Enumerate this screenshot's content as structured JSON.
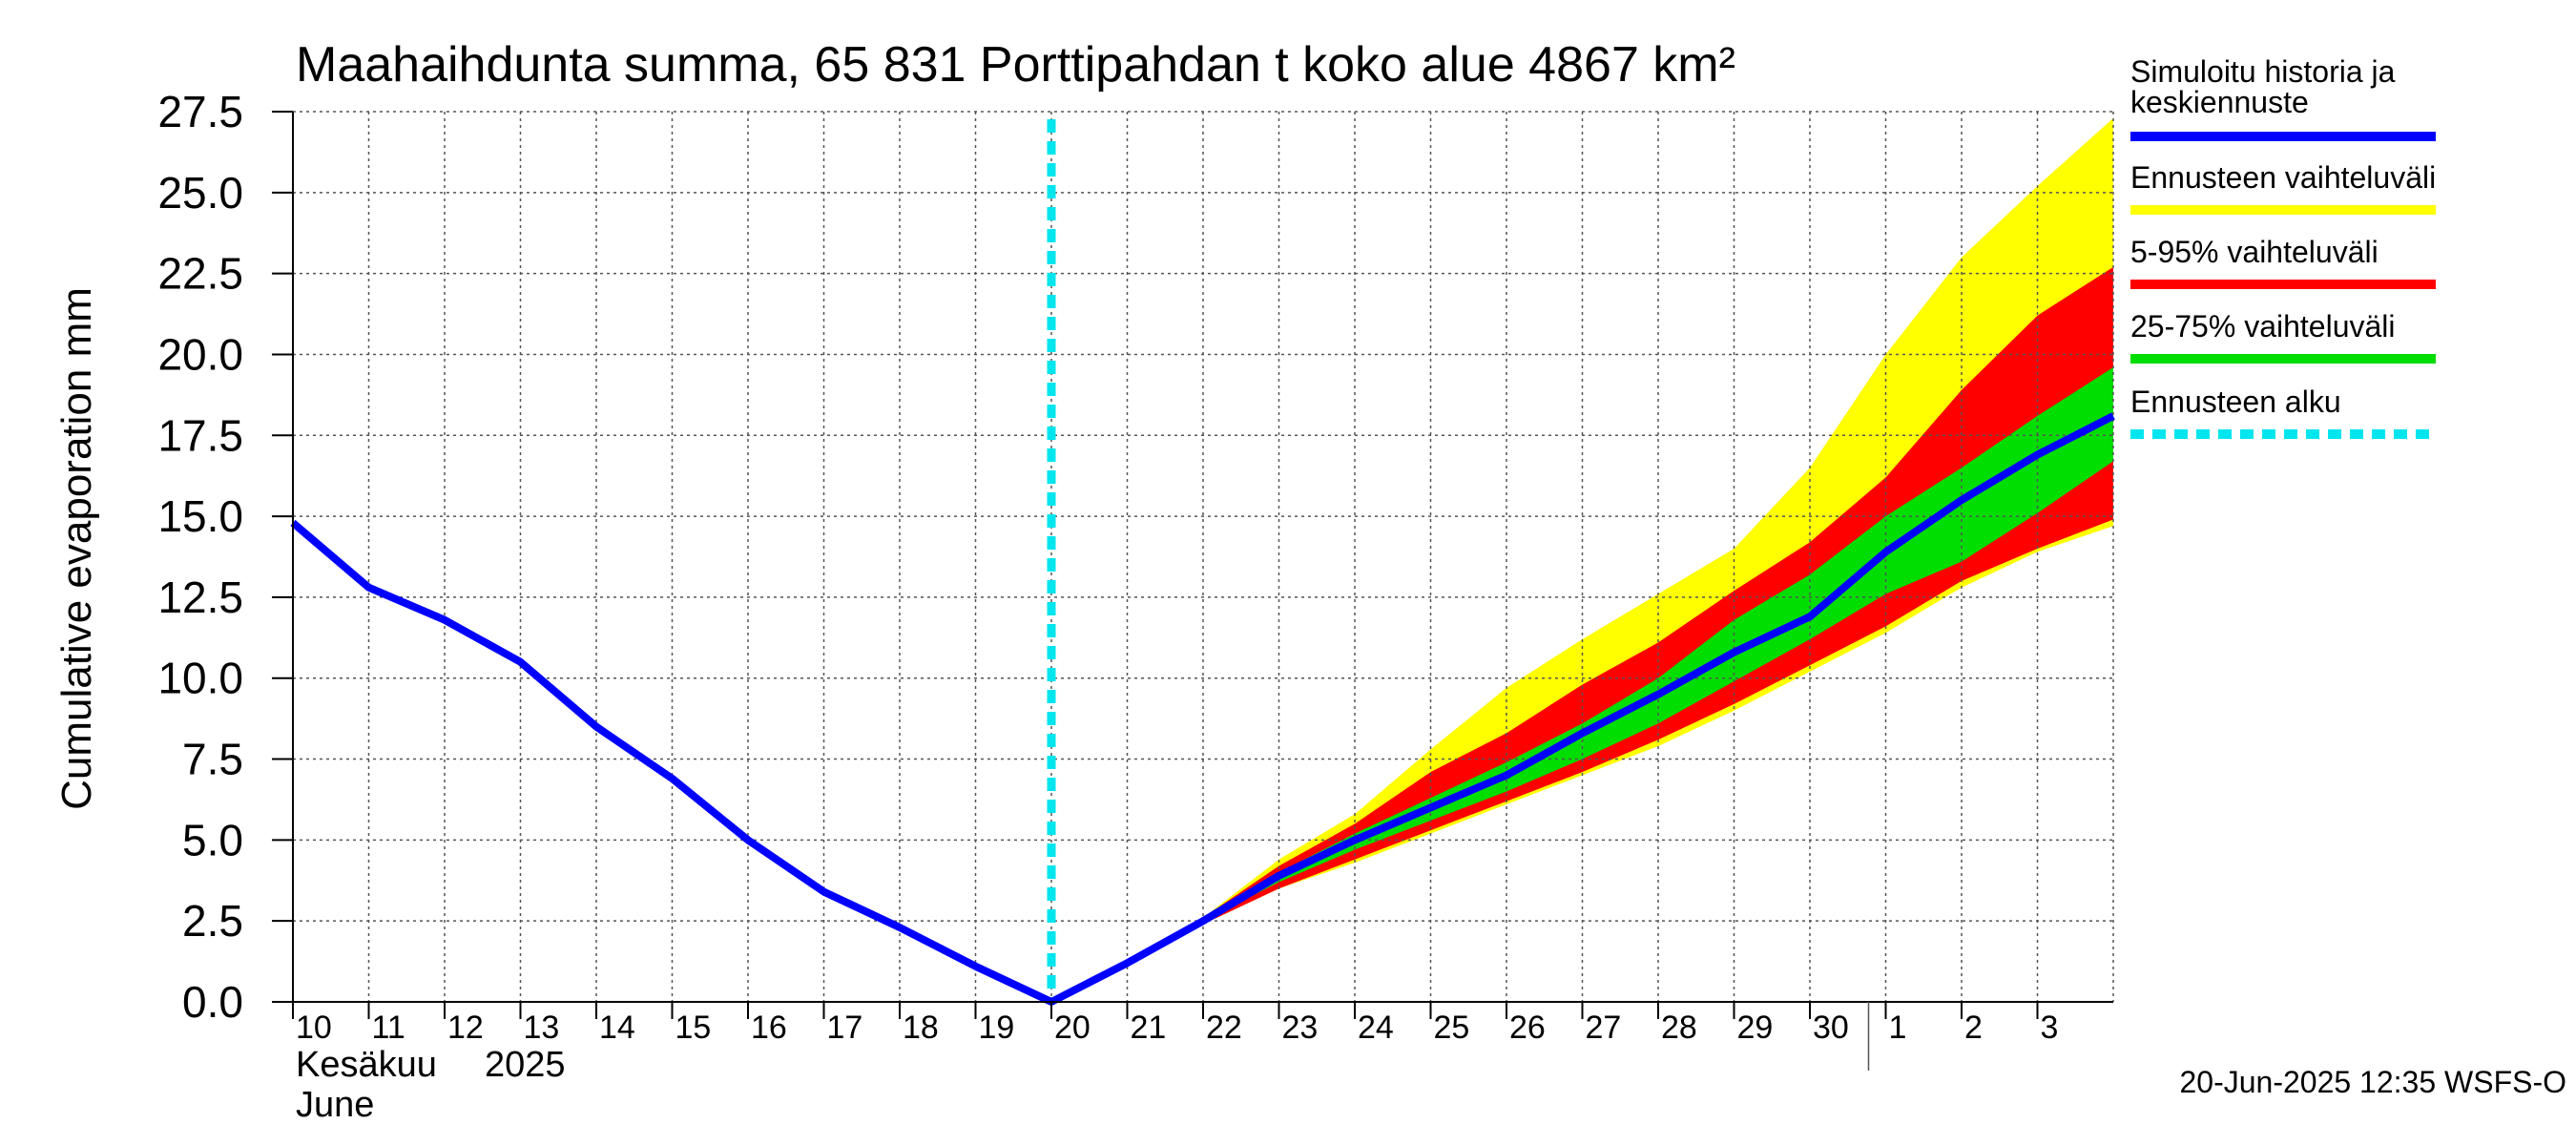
{
  "chart_data": {
    "type": "area",
    "title": "Maahaihdunta summa, 65 831 Porttipahdan t koko alue 4867 km²",
    "ylabel": "Cumulative evaporation   mm",
    "ylim": [
      0,
      27.5
    ],
    "yticks": [
      "0.0",
      "2.5",
      "5.0",
      "7.5",
      "10.0",
      "12.5",
      "15.0",
      "17.5",
      "20.0",
      "22.5",
      "25.0",
      "27.5"
    ],
    "x_range": [
      "2025-06-10",
      "2025-07-04"
    ],
    "xticks": [
      "10",
      "11",
      "12",
      "13",
      "14",
      "15",
      "16",
      "17",
      "18",
      "19",
      "20",
      "21",
      "22",
      "23",
      "24",
      "25",
      "26",
      "27",
      "28",
      "29",
      "30",
      "1",
      "2",
      "3"
    ],
    "xlabel_month_fi": "Kesäkuu",
    "xlabel_year": "2025",
    "xlabel_month_en": "June",
    "grid": true,
    "legend_position": "right",
    "forecast_start": "2025-06-20",
    "dates": [
      "2025-06-10",
      "2025-06-11",
      "2025-06-12",
      "2025-06-13",
      "2025-06-14",
      "2025-06-15",
      "2025-06-16",
      "2025-06-17",
      "2025-06-18",
      "2025-06-19",
      "2025-06-20",
      "2025-06-21",
      "2025-06-22",
      "2025-06-23",
      "2025-06-24",
      "2025-06-25",
      "2025-06-26",
      "2025-06-27",
      "2025-06-28",
      "2025-06-29",
      "2025-06-30",
      "2025-07-01",
      "2025-07-02",
      "2025-07-03",
      "2025-07-04"
    ],
    "history_median": [
      14.8,
      12.8,
      11.8,
      10.5,
      8.5,
      6.9,
      5.0,
      3.4,
      2.3,
      1.1,
      0.0,
      1.2,
      2.5,
      3.9,
      5.0,
      6.0,
      7.0,
      8.3,
      9.5,
      10.8,
      11.9,
      13.9,
      15.5,
      16.9,
      18.1
    ],
    "bands": [
      {
        "name": "Ennusteen vaihteluväli",
        "color": "#ffff00",
        "start_index": 11,
        "low": [
          1.2,
          2.4,
          3.5,
          4.3,
          5.2,
          6.1,
          7.0,
          7.9,
          9.0,
          10.2,
          11.4,
          12.8,
          13.9,
          14.7
        ],
        "high": [
          1.2,
          2.6,
          4.4,
          5.8,
          7.8,
          9.7,
          11.2,
          12.6,
          14.0,
          16.5,
          20.0,
          23.0,
          25.2,
          27.3
        ]
      },
      {
        "name": "5-95% vaihteluväli",
        "color": "#ff0000",
        "start_index": 11,
        "low": [
          1.2,
          2.4,
          3.5,
          4.4,
          5.3,
          6.2,
          7.1,
          8.1,
          9.2,
          10.4,
          11.6,
          13.0,
          14.0,
          14.9
        ],
        "high": [
          1.2,
          2.6,
          4.2,
          5.5,
          7.1,
          8.3,
          9.8,
          11.1,
          12.7,
          14.2,
          16.2,
          18.9,
          21.2,
          22.7
        ]
      },
      {
        "name": "25-75% vaihteluväli",
        "color": "#00dd00",
        "start_index": 11,
        "low": [
          1.2,
          2.5,
          3.7,
          4.7,
          5.6,
          6.5,
          7.5,
          8.6,
          9.9,
          11.2,
          12.6,
          13.6,
          15.1,
          16.7
        ],
        "high": [
          1.2,
          2.5,
          4.0,
          5.2,
          6.3,
          7.4,
          8.6,
          10.0,
          11.8,
          13.2,
          15.0,
          16.5,
          18.1,
          19.6
        ]
      }
    ],
    "legend": [
      {
        "label": "Simuloitu historia ja keskiennuste",
        "line1": "Simuloitu historia ja",
        "line2": "keskiennuste",
        "color": "#0000ff",
        "style": "solid"
      },
      {
        "label": "Ennusteen vaihteluväli",
        "color": "#ffff00",
        "style": "solid"
      },
      {
        "label": "5-95% vaihteluväli",
        "color": "#ff0000",
        "style": "solid"
      },
      {
        "label": "25-75% vaihteluväli",
        "color": "#00dd00",
        "style": "solid"
      },
      {
        "label": "Ennusteen alku",
        "color": "#00e5ee",
        "style": "dashed"
      }
    ],
    "footer": "20-Jun-2025 12:35 WSFS-O"
  }
}
